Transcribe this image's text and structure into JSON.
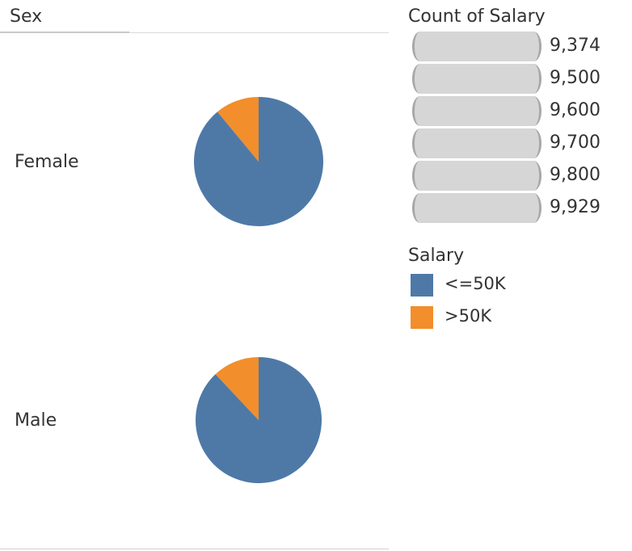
{
  "header": {
    "dimension_label": "Sex"
  },
  "rows": [
    {
      "label": "Female"
    },
    {
      "label": "Male"
    }
  ],
  "size_legend": {
    "title": "Count of Salary",
    "items": [
      "9,374",
      "9,500",
      "9,600",
      "9,700",
      "9,800",
      "9,929"
    ]
  },
  "color_legend": {
    "title": "Salary",
    "items": [
      {
        "label": "<=50K",
        "color": "#4e79a7"
      },
      {
        "label": ">50K",
        "color": "#f28e2b"
      }
    ]
  },
  "chart_data": {
    "type": "pie",
    "title": "",
    "row_dimension": "Sex",
    "measure": "Count of Salary",
    "slice_labels": [
      "<=50K",
      ">50K"
    ],
    "colors": [
      "#4e79a7",
      "#f28e2b"
    ],
    "pies": [
      {
        "category": "Female",
        "values": [
          0.89,
          0.11
        ]
      },
      {
        "category": "Male",
        "values": [
          0.88,
          0.12
        ]
      }
    ]
  }
}
